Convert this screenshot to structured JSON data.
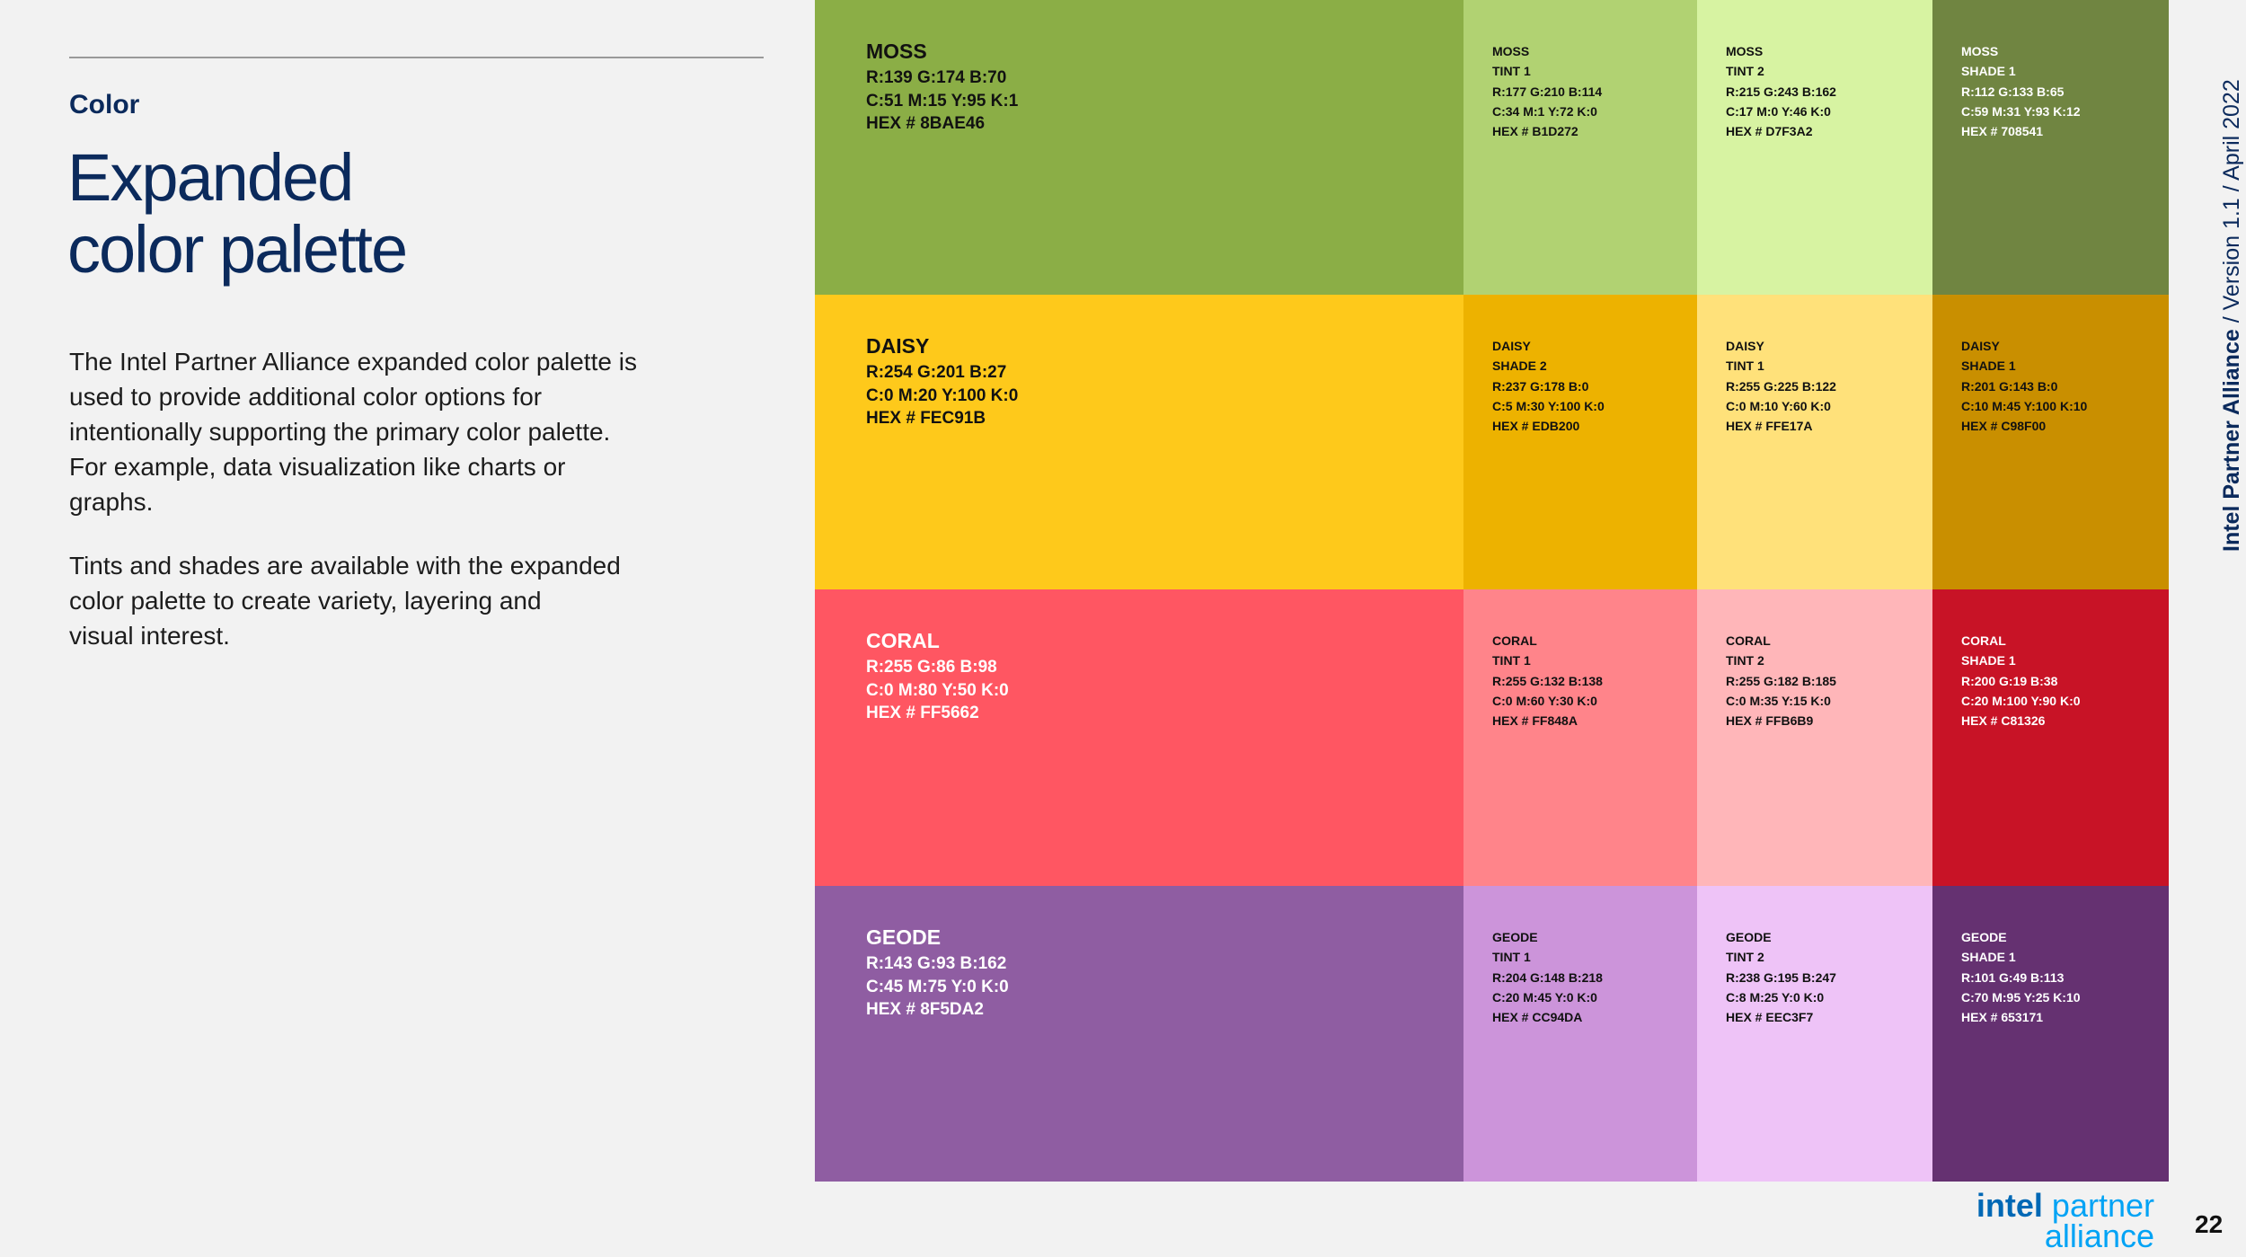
{
  "header": {
    "section": "Color",
    "title": [
      "Expanded",
      "color palette"
    ]
  },
  "body": [
    [
      "The Intel Partner Alliance expanded color palette is",
      "used to provide additional color options for",
      "intentionally supporting the primary color palette.",
      "For example, data visualization like charts or",
      "graphs."
    ],
    [
      "Tints and shades are available with the expanded",
      "color palette to create variety, layering and",
      "visual interest."
    ]
  ],
  "sidebar": {
    "brand": "Intel Partner Alliance",
    "version": "/ Version 1.1 / April 2022"
  },
  "logo": {
    "intel": "intel",
    "partner": "partner",
    "alliance": "alliance"
  },
  "page_number": "22",
  "palette": {
    "rows": [
      {
        "cells": [
          {
            "name": "MOSS",
            "rgb": "R:139 G:174 B:70",
            "cmyk": "C:51 M:15 Y:95 K:1",
            "hex": "HEX # 8BAE46",
            "color": "#8BAE46",
            "text_color": "#111111"
          },
          {
            "name": "MOSS",
            "variant": "TINT 1",
            "rgb": "R:177 G:210 B:114",
            "cmyk": "C:34 M:1 Y:72 K:0",
            "hex": "HEX # B1D272",
            "color": "#B1D272",
            "text_color": "#111111"
          },
          {
            "name": "MOSS",
            "variant": "TINT 2",
            "rgb": "R:215 G:243 B:162",
            "cmyk": "C:17 M:0 Y:46 K:0",
            "hex": "HEX # D7F3A2",
            "color": "#D7F3A2",
            "text_color": "#111111"
          },
          {
            "name": "MOSS",
            "variant": "SHADE 1",
            "rgb": "R:112 G:133 B:65",
            "cmyk": "C:59 M:31 Y:93 K:12",
            "hex": "HEX # 708541",
            "color": "#708541",
            "text_color": "#ffffff"
          }
        ]
      },
      {
        "cells": [
          {
            "name": "DAISY",
            "rgb": "R:254 G:201 B:27",
            "cmyk": "C:0 M:20 Y:100 K:0",
            "hex": "HEX # FEC91B",
            "color": "#FEC91B",
            "text_color": "#111111"
          },
          {
            "name": "DAISY",
            "variant": "SHADE 2",
            "rgb": "R:237 G:178 B:0",
            "cmyk": "C:5 M:30 Y:100 K:0",
            "hex": "HEX # EDB200",
            "color": "#EDB200",
            "text_color": "#111111"
          },
          {
            "name": "DAISY",
            "variant": "TINT 1",
            "rgb": "R:255 G:225 B:122",
            "cmyk": "C:0 M:10 Y:60 K:0",
            "hex": "HEX # FFE17A",
            "color": "#FFE17A",
            "text_color": "#111111"
          },
          {
            "name": "DAISY",
            "variant": "SHADE 1",
            "rgb": "R:201 G:143 B:0",
            "cmyk": "C:10 M:45 Y:100 K:10",
            "hex": "HEX # C98F00",
            "color": "#C98F00",
            "text_color": "#111111"
          }
        ]
      },
      {
        "cells": [
          {
            "name": "CORAL",
            "rgb": "R:255 G:86 B:98",
            "cmyk": "C:0 M:80 Y:50 K:0",
            "hex": "HEX # FF5662",
            "color": "#FF5662",
            "text_color": "#ffffff"
          },
          {
            "name": "CORAL",
            "variant": "TINT 1",
            "rgb": "R:255 G:132 B:138",
            "cmyk": "C:0 M:60 Y:30 K:0",
            "hex": "HEX # FF848A",
            "color": "#FF848A",
            "text_color": "#111111"
          },
          {
            "name": "CORAL",
            "variant": "TINT 2",
            "rgb": "R:255 G:182 B:185",
            "cmyk": "C:0 M:35 Y:15 K:0",
            "hex": "HEX # FFB6B9",
            "color": "#FFB6B9",
            "text_color": "#111111"
          },
          {
            "name": "CORAL",
            "variant": "SHADE 1",
            "rgb": "R:200 G:19 B:38",
            "cmyk": "C:20 M:100 Y:90 K:0",
            "hex": "HEX # C81326",
            "color": "#C81326",
            "text_color": "#ffffff"
          }
        ]
      },
      {
        "cells": [
          {
            "name": "GEODE",
            "rgb": "R:143 G:93 B:162",
            "cmyk": "C:45 M:75 Y:0 K:0",
            "hex": "HEX # 8F5DA2",
            "color": "#8F5DA2",
            "text_color": "#ffffff"
          },
          {
            "name": "GEODE",
            "variant": "TINT 1",
            "rgb": "R:204 G:148 B:218",
            "cmyk": "C:20 M:45 Y:0 K:0",
            "hex": "HEX # CC94DA",
            "color": "#CC94DA",
            "text_color": "#111111"
          },
          {
            "name": "GEODE",
            "variant": "TINT 2",
            "rgb": "R:238 G:195 B:247",
            "cmyk": "C:8 M:25 Y:0 K:0",
            "hex": "HEX # EEC3F7",
            "color": "#EEC3F7",
            "text_color": "#111111"
          },
          {
            "name": "GEODE",
            "variant": "SHADE 1",
            "rgb": "R:101 G:49 B:113",
            "cmyk": "C:70 M:95 Y:25 K:10",
            "hex": "HEX # 653171",
            "color": "#653171",
            "text_color": "#ffffff"
          }
        ]
      }
    ]
  }
}
